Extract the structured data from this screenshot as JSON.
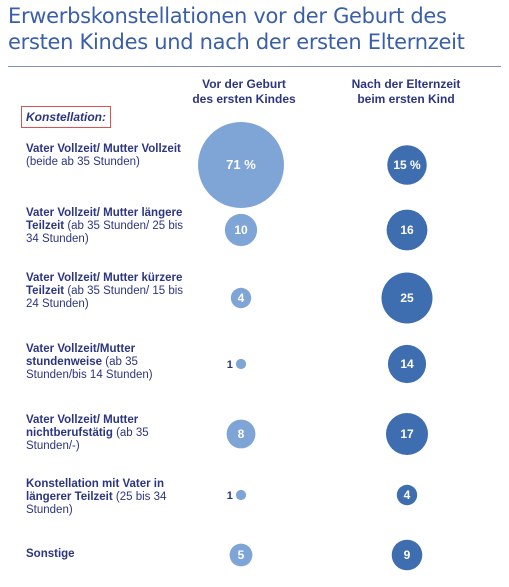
{
  "title_line1": "Erwerbskonstellationen vor der Geburt des",
  "title_line2": "ersten Kindes und nach der ersten Elternzeit",
  "legend_label": "Konstellation:",
  "chart_data": {
    "type": "bubble-table",
    "columns": [
      {
        "line1": "Vor der Geburt",
        "line2": "des ersten Kindes"
      },
      {
        "line1": "Nach der Elternzeit",
        "line2": "beim ersten Kind"
      }
    ],
    "rows": [
      {
        "bold": "Vater Vollzeit/ Mutter Vollzeit",
        "normal": "(beide ab 35 Stunden)",
        "before": 71,
        "after": 15,
        "before_label": "71 %",
        "after_label": "15 %"
      },
      {
        "bold": "Vater Vollzeit/ Mutter längere Teilzeit",
        "normal": "(ab 35 Stunden/ 25 bis 34 Stunden)",
        "before": 10,
        "after": 16,
        "before_label": "10",
        "after_label": "16"
      },
      {
        "bold": "Vater Vollzeit/ Mutter kürzere Teilzeit",
        "normal": "(ab 35 Stunden/ 15 bis 24 Stunden)",
        "before": 4,
        "after": 25,
        "before_label": "4",
        "after_label": "25"
      },
      {
        "bold": "Vater Vollzeit/Mutter stundenweise",
        "normal": "(ab 35 Stunden/bis 14 Stunden)",
        "before": 1,
        "after": 14,
        "before_label": "1",
        "after_label": "14"
      },
      {
        "bold": "Vater Vollzeit/ Mutter nichtberufstätig",
        "normal": "(ab 35 Stunden/-)",
        "before": 8,
        "after": 17,
        "before_label": "8",
        "after_label": "17"
      },
      {
        "bold": "Konstellation mit Vater in längerer Teilzeit",
        "normal": "(25 bis 34 Stunden)",
        "before": 1,
        "after": 4,
        "before_label": "1",
        "after_label": "4"
      },
      {
        "bold": "Sonstige",
        "normal": "",
        "before": 5,
        "after": 9,
        "before_label": "5",
        "after_label": "9"
      }
    ],
    "colors": {
      "before": "#7fa5d6",
      "after": "#3e6db0",
      "text": "#2c3580"
    }
  }
}
